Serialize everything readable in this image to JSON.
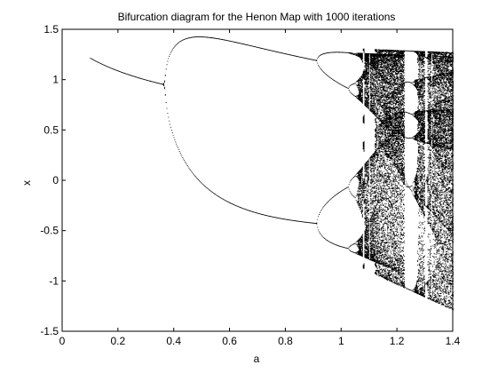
{
  "chart_data": {
    "type": "scatter",
    "title": "Bifurcation diagram for the Henon Map with 1000 iterations",
    "xlabel": "a",
    "ylabel": "x",
    "xlim": [
      0,
      1.4
    ],
    "ylim": [
      -1.5,
      1.5
    ],
    "xticks": [
      0,
      0.2,
      0.4,
      0.6,
      0.8,
      1,
      1.2,
      1.4
    ],
    "xtick_labels": [
      "0",
      "0.2",
      "0.4",
      "0.6",
      "0.8",
      "1",
      "1.2",
      "1.4"
    ],
    "yticks": [
      -1.5,
      -1,
      -0.5,
      0,
      0.5,
      1,
      1.5
    ],
    "ytick_labels": [
      "-1.5",
      "-1",
      "-0.5",
      "0",
      "0.5",
      "1",
      "1.5"
    ],
    "grid": false,
    "legend": "none",
    "marker_color": "#000000",
    "map_params": {
      "b": 0.3,
      "a_start": 0.1,
      "a_end": 1.4,
      "iterations": 1000
    },
    "series": [
      {
        "values": [
          [
            0.1,
            1.22
          ],
          [
            0.2,
            1.11
          ],
          [
            0.3,
            1.02
          ],
          [
            0.367,
            0.96
          ],
          [
            0.4,
            1.28
          ],
          [
            0.45,
            1.38
          ],
          [
            0.5,
            1.43
          ],
          [
            0.6,
            1.39
          ],
          [
            0.7,
            1.32
          ],
          [
            0.8,
            1.26
          ],
          [
            0.9,
            1.2
          ],
          [
            0.915,
            1.19
          ],
          [
            0.4,
            0.59
          ],
          [
            0.45,
            0.13
          ],
          [
            0.5,
            -0.08
          ],
          [
            0.6,
            -0.26
          ],
          [
            0.7,
            -0.33
          ],
          [
            0.8,
            -0.37
          ],
          [
            0.9,
            -0.41
          ],
          [
            0.915,
            -0.42
          ]
        ]
      }
    ]
  }
}
